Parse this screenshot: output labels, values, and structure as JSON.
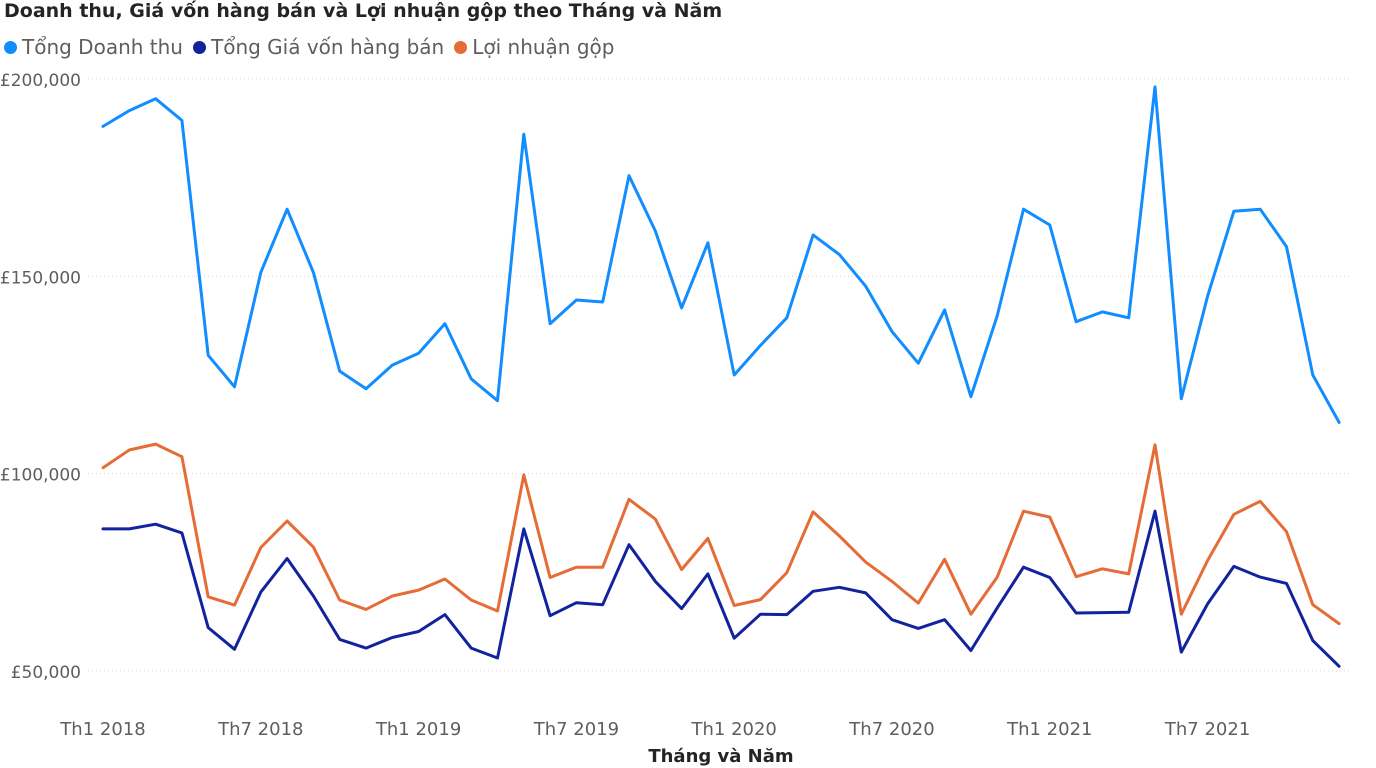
{
  "chart_data": {
    "type": "line",
    "title": "Doanh thu, Giá vốn hàng bán và Lợi nhuận gộp theo Tháng và Năm",
    "xlabel": "Tháng và Năm",
    "ylabel": "",
    "ylim": [
      50000,
      200000
    ],
    "yticks": [
      "£50,000",
      "£100,000",
      "£150,000",
      "£200,000"
    ],
    "ytick_values": [
      50000,
      100000,
      150000,
      200000
    ],
    "xticks": [
      "Th1 2018",
      "Th7 2018",
      "Th1 2019",
      "Th7 2019",
      "Th1 2020",
      "Th7 2020",
      "Th1 2021",
      "Th7 2021"
    ],
    "xtick_index": [
      0,
      6,
      12,
      18,
      24,
      30,
      36,
      42
    ],
    "grid": true,
    "legend_position": "top-left",
    "series": [
      {
        "name": "Tổng Doanh thu",
        "color": "#118DFF",
        "values": [
          188000,
          192000,
          195000,
          189500,
          130000,
          122000,
          151000,
          167000,
          151000,
          126000,
          121500,
          127500,
          130500,
          138000,
          124000,
          118500,
          186000,
          138000,
          144000,
          143500,
          175500,
          161500,
          142000,
          158500,
          125000,
          132500,
          139500,
          160500,
          155500,
          147500,
          136000,
          128000,
          141500,
          119500,
          140000,
          167000,
          163000,
          138500,
          141000,
          139500,
          198000,
          119000,
          145000,
          166500,
          167000,
          157500,
          125000,
          113000
        ]
      },
      {
        "name": "Tổng Giá vốn hàng bán",
        "color": "#12239E",
        "values": [
          86000,
          86000,
          87200,
          85000,
          61000,
          55500,
          70000,
          78500,
          69000,
          58000,
          55800,
          58500,
          60000,
          64300,
          55800,
          53300,
          86000,
          64000,
          67300,
          66800,
          82000,
          72700,
          65800,
          74600,
          58300,
          64400,
          64300,
          70200,
          71200,
          69800,
          63000,
          60800,
          63000,
          55200,
          66000,
          76300,
          73700,
          64700,
          64800,
          64900,
          90500,
          54800,
          67000,
          76500,
          73800,
          72200,
          57700,
          51200
        ]
      },
      {
        "name": "Lợi nhuận gộp",
        "color": "#E66C37",
        "values": [
          101500,
          106000,
          107500,
          104300,
          68800,
          66700,
          81300,
          88000,
          81400,
          68000,
          65600,
          69000,
          70500,
          73300,
          68000,
          65200,
          99700,
          73700,
          76300,
          76300,
          93500,
          88500,
          75700,
          83600,
          66600,
          68100,
          74900,
          90300,
          84200,
          77600,
          72700,
          67200,
          78300,
          64400,
          73800,
          90500,
          89000,
          73900,
          75900,
          74600,
          107300,
          64400,
          78000,
          89700,
          93000,
          85300,
          66800,
          62000
        ]
      }
    ]
  }
}
